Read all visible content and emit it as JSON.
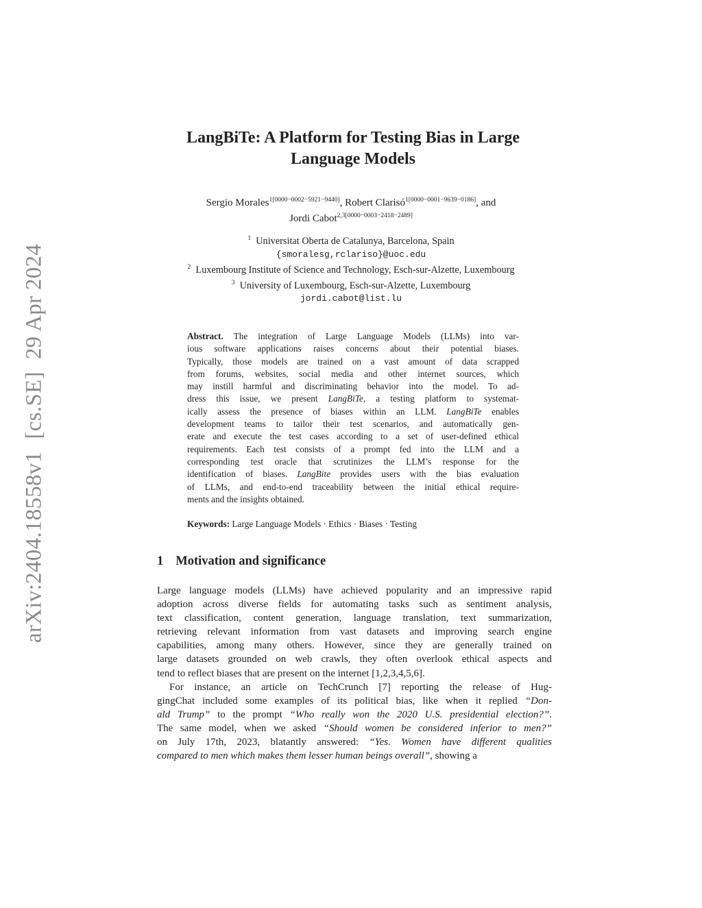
{
  "stamp": {
    "id": "arXiv:2404.18558v1",
    "category": "[cs.SE]",
    "date": "29 Apr 2024"
  },
  "title": {
    "line1": "LangBiTe: A Platform for Testing Bias in Large",
    "line2": "Language Models"
  },
  "authors": [
    {
      "name": "Sergio Morales",
      "sup": "1[0000−0002−5921−9440]",
      "after": ", "
    },
    {
      "name": "Robert Clarisó",
      "sup": "1[0000−0001−9639−0186]",
      "after": ", and"
    },
    {
      "name": "Jordi Cabot",
      "sup": "2,3[0000−0003−2418−2489]",
      "after": ""
    }
  ],
  "affiliations": [
    {
      "sup": "1",
      "text": "Universitat Oberta de Catalunya, Barcelona, Spain"
    },
    {
      "sup": "",
      "text": "{smoralesg,rclariso}@uoc.edu",
      "mono": true
    },
    {
      "sup": "2",
      "text": "Luxembourg Institute of Science and Technology, Esch-sur-Alzette, Luxembourg"
    },
    {
      "sup": "3",
      "text": "University of Luxembourg, Esch-sur-Alzette, Luxembourg"
    },
    {
      "sup": "",
      "text": "jordi.cabot@list.lu",
      "mono": true
    }
  ],
  "abstract": {
    "label": "Abstract.",
    "lines": [
      [
        " The integration of Large Language Models (LLMs) into var-"
      ],
      [
        "ious software applications raises concerns about their potential biases."
      ],
      [
        "Typically, those models are trained on a vast amount of data scrapped"
      ],
      [
        "from forums, websites, social media and other internet sources, which"
      ],
      [
        "may instill harmful and discriminating behavior into the model. To ad-"
      ],
      [
        "dress this issue, we present ",
        {
          "t": "LangBiTe"
        },
        ", a testing platform to systemat-"
      ],
      [
        "ically assess the presence of biases within an LLM. ",
        {
          "t": "LangBiTe"
        },
        " enables"
      ],
      [
        "development teams to tailor their test scenarios, and automatically gen-"
      ],
      [
        "erate and execute the test cases according to a set of user-defined ethical"
      ],
      [
        "requirements. Each test consists of a prompt fed into the LLM and a"
      ],
      [
        "corresponding test oracle that scrutinizes the LLM’s response for the"
      ],
      [
        "identification of biases. ",
        {
          "t": "LangBite"
        },
        " provides users with the bias evaluation"
      ],
      [
        "of LLMs, and end-to-end traceability between the initial ethical require-"
      ],
      [
        "ments and the insights obtained."
      ]
    ]
  },
  "keywords": {
    "label": "Keywords:",
    "text": "Large Language Models · Ethics · Biases · Testing"
  },
  "section": {
    "number": "1",
    "title": "Motivation and significance"
  },
  "body": [
    [
      [
        "Large language models (LLMs) have achieved popularity and an impressive rapid"
      ],
      [
        "adoption across diverse fields for automating tasks such as sentiment analysis,"
      ],
      [
        "text classification, content generation, language translation, text summarization,"
      ],
      [
        "retrieving relevant information from vast datasets and improving search engine"
      ],
      [
        "capabilities, among many others. However, since they are generally trained on"
      ],
      [
        "large datasets grounded on web crawls, they often overlook ethical aspects and"
      ],
      [
        "tend to reflect biases that are present on the internet [1,2,3,4,5,6]."
      ]
    ],
    [
      [
        "For instance, an article on TechCrunch [7] reporting the release of Hug-"
      ],
      [
        "gingChat included some examples of its political bias, like when it replied ",
        {
          "t": "“Don-"
        }
      ],
      [
        {
          "t": "ald Trump”"
        },
        " to the prompt ",
        {
          "t": "“Who really won the 2020 U.S. presidential election?”"
        },
        "."
      ],
      [
        "The same model, when we asked ",
        {
          "t": "“Should women be considered inferior to men?”"
        }
      ],
      [
        "on July 17th, 2023, blatantly answered: ",
        {
          "t": "“Yes. Women have different qualities"
        }
      ],
      [
        {
          "t": "compared to men which makes them lesser human beings overall”"
        },
        ", showing a"
      ]
    ]
  ]
}
